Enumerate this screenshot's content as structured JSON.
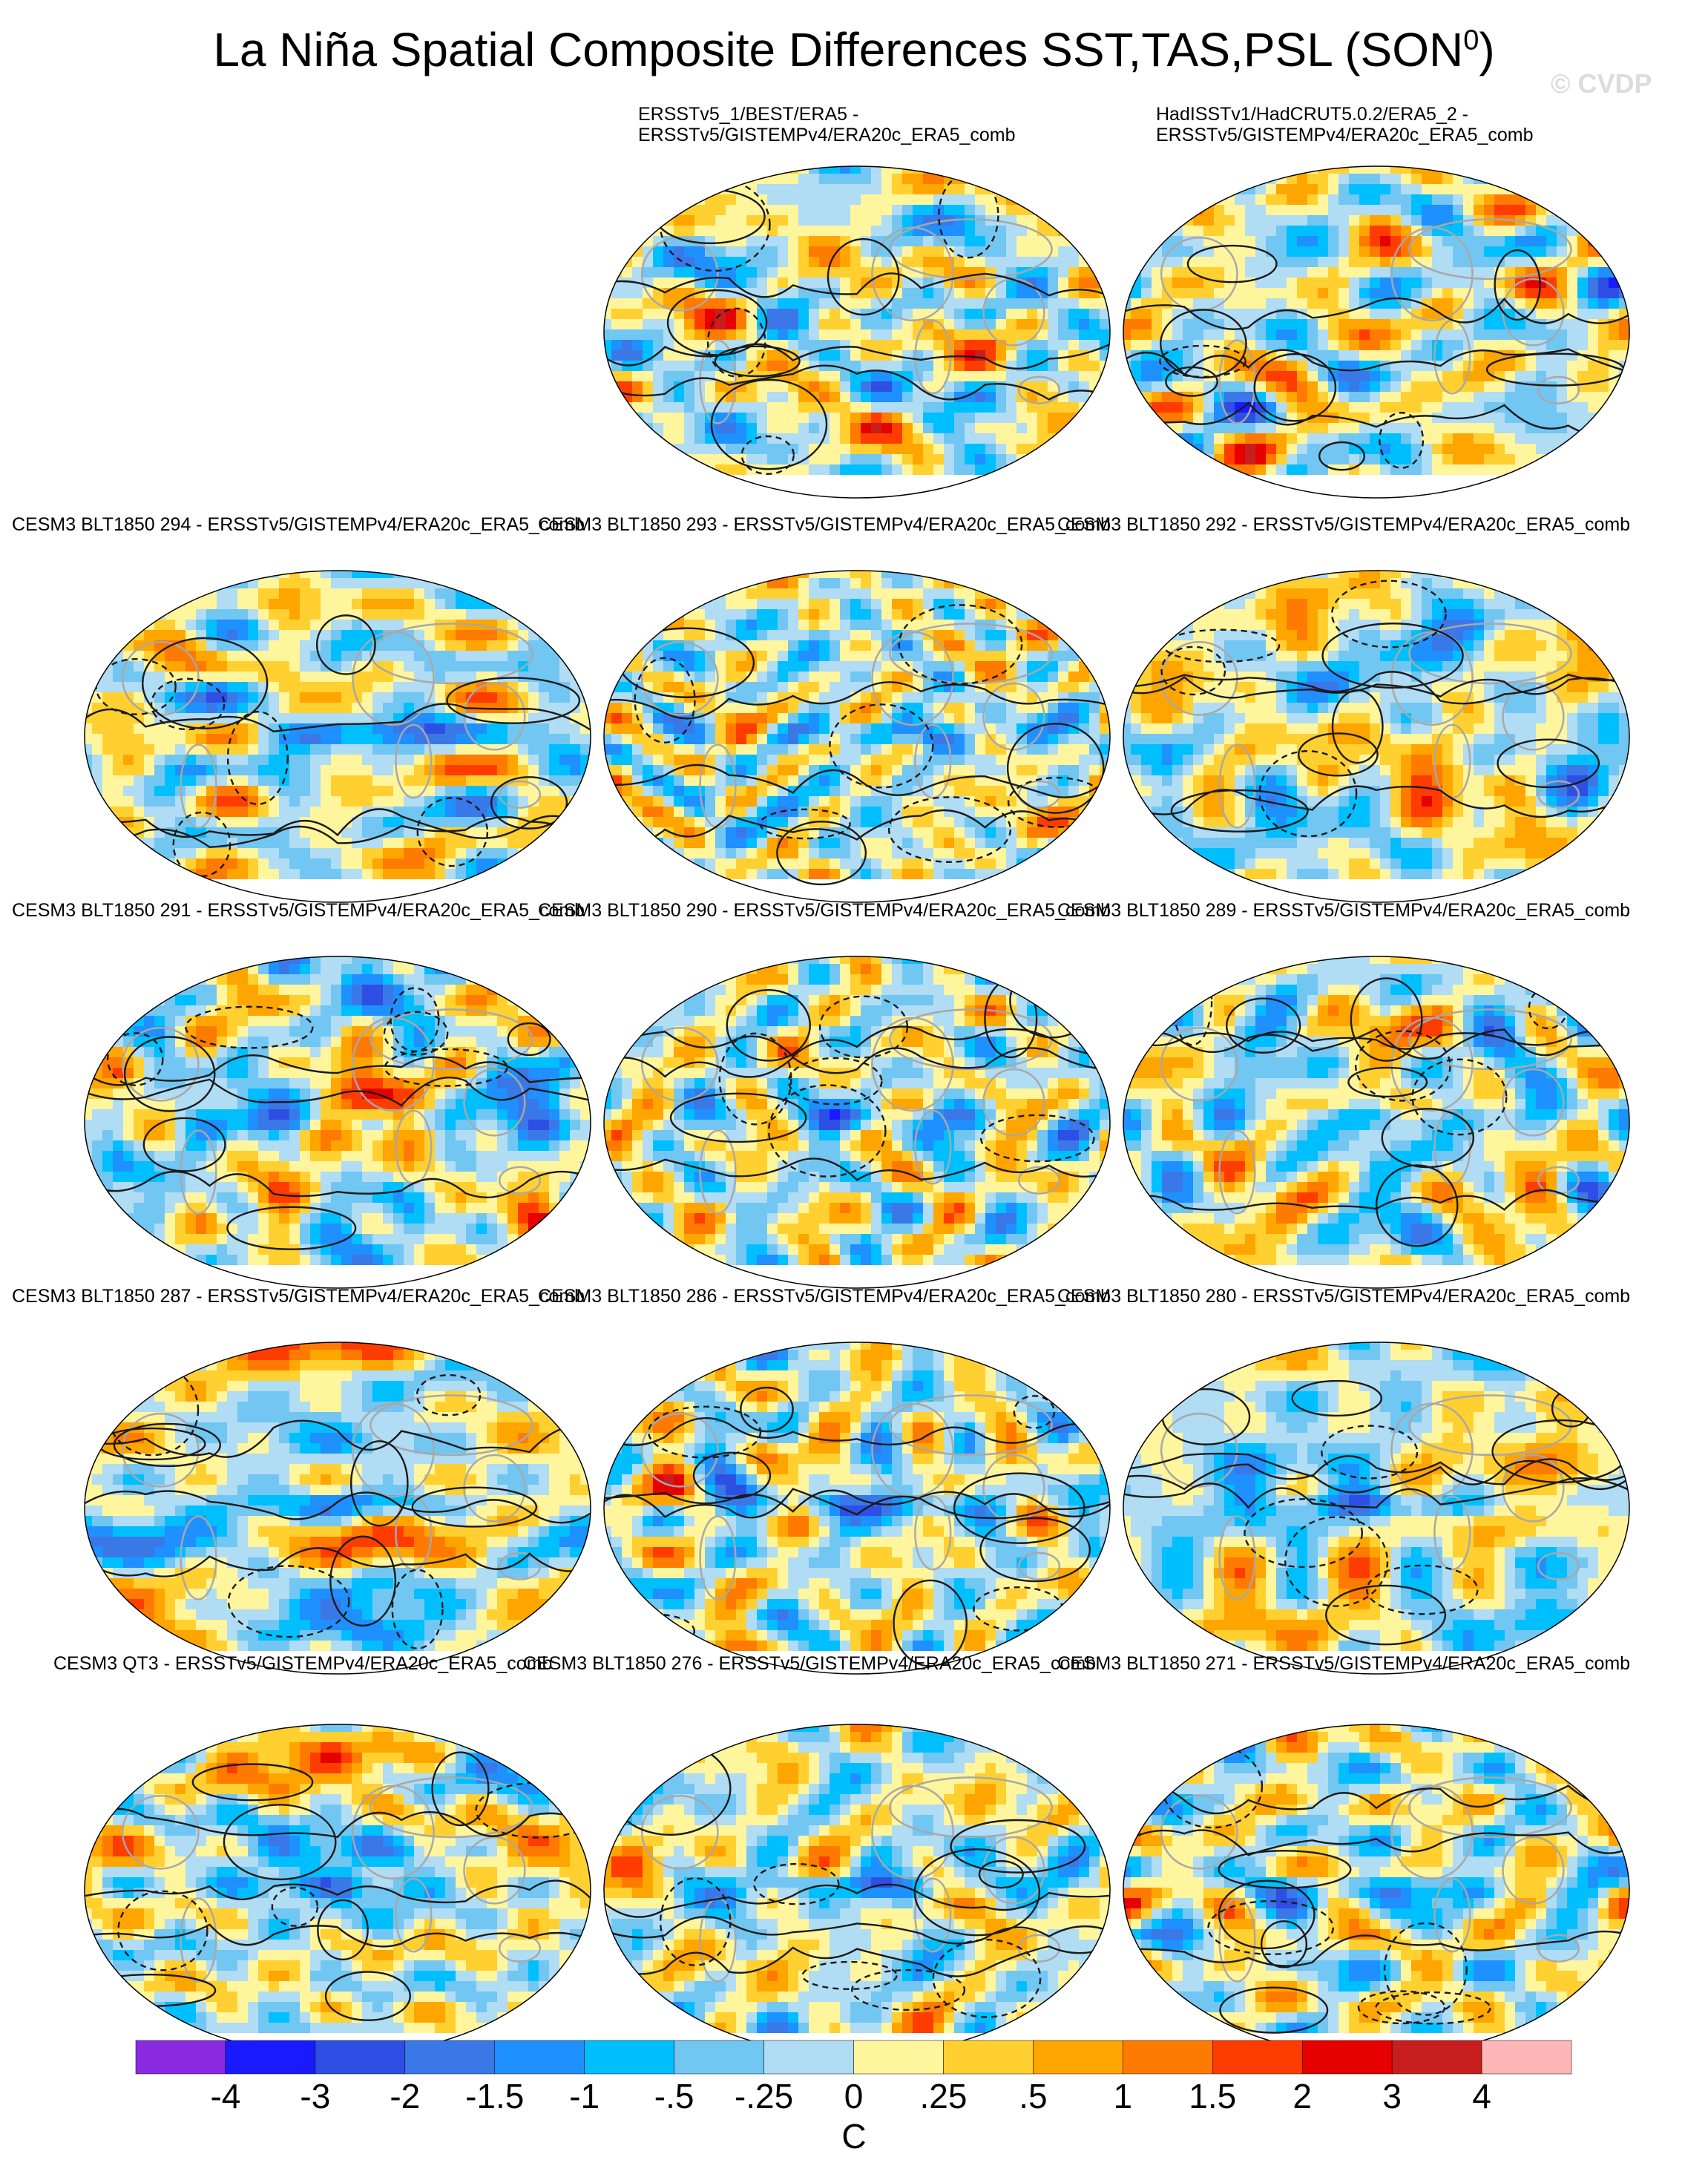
{
  "title": {
    "text": "La Niña Spatial Composite Differences SST,TAS,PSL (SON",
    "superscript": "0",
    "close": ")"
  },
  "watermark": "© CVDP",
  "colors": {
    "levels": [
      "#8a2be2",
      "#1a1aff",
      "#2e4fe3",
      "#3a78e8",
      "#1e90ff",
      "#00bfff",
      "#72c6f2",
      "#b0dcf4",
      "#fff59d",
      "#ffd030",
      "#ffa500",
      "#ff7a00",
      "#ff3c00",
      "#e60000",
      "#c81e1e",
      "#ffb6b6"
    ],
    "land_outline": "#a8a8a8",
    "contour": "#1a1a1a"
  },
  "chart_data": {
    "type": "heatmap",
    "projection": "robinson",
    "variables": [
      "SST",
      "TAS",
      "PSL"
    ],
    "season": "SON0",
    "colorbar": {
      "unit": "C",
      "tick_labels": [
        "-4",
        "-3",
        "-2",
        "-1.5",
        "-1",
        "-.5",
        "-.25",
        "0",
        ".25",
        ".5",
        "1",
        "1.5",
        "2",
        "3",
        "4"
      ]
    },
    "panels": [
      {
        "id": "obs1",
        "title_lines": [
          "ERSSTv5_1/BEST/ERA5 -",
          "ERSSTv5/GISTEMPv4/ERA20c_ERA5_comb"
        ],
        "seed": 11
      },
      {
        "id": "obs2",
        "title_lines": [
          "HadISSTv1/HadCRUT5.0.2/ERA5_2 -",
          "ERSSTv5/GISTEMPv4/ERA20c_ERA5_comb"
        ],
        "seed": 23
      },
      {
        "id": "m294",
        "title_lines": [
          "CESM3 BLT1850 294 - ERSSTv5/GISTEMPv4/ERA20c_ERA5_comb"
        ],
        "seed": 37
      },
      {
        "id": "m293",
        "title_lines": [
          "CESM3 BLT1850 293 - ERSSTv5/GISTEMPv4/ERA20c_ERA5_comb"
        ],
        "seed": 41
      },
      {
        "id": "m292",
        "title_lines": [
          "CESM3 BLT1850 292 - ERSSTv5/GISTEMPv4/ERA20c_ERA5_comb"
        ],
        "seed": 53
      },
      {
        "id": "m291",
        "title_lines": [
          "CESM3 BLT1850 291 - ERSSTv5/GISTEMPv4/ERA20c_ERA5_comb"
        ],
        "seed": 67
      },
      {
        "id": "m290",
        "title_lines": [
          "CESM3 BLT1850 290 - ERSSTv5/GISTEMPv4/ERA20c_ERA5_comb"
        ],
        "seed": 71
      },
      {
        "id": "m289",
        "title_lines": [
          "CESM3 BLT1850 289 - ERSSTv5/GISTEMPv4/ERA20c_ERA5_comb"
        ],
        "seed": 83
      },
      {
        "id": "m287",
        "title_lines": [
          "CESM3 BLT1850 287 - ERSSTv5/GISTEMPv4/ERA20c_ERA5_comb"
        ],
        "seed": 97
      },
      {
        "id": "m286",
        "title_lines": [
          "CESM3 BLT1850 286 - ERSSTv5/GISTEMPv4/ERA20c_ERA5_comb"
        ],
        "seed": 101
      },
      {
        "id": "m280",
        "title_lines": [
          "CESM3 BLT1850 280 - ERSSTv5/GISTEMPv4/ERA20c_ERA5_comb"
        ],
        "seed": 113
      },
      {
        "id": "qt3",
        "title_lines": [
          "CESM3 QT3 - ERSSTv5/GISTEMPv4/ERA20c_ERA5_comb"
        ],
        "seed": 127
      },
      {
        "id": "m276",
        "title_lines": [
          "CESM3 BLT1850 276 - ERSSTv5/GISTEMPv4/ERA20c_ERA5_comb"
        ],
        "seed": 131
      },
      {
        "id": "m271",
        "title_lines": [
          "CESM3 BLT1850 271 - ERSSTv5/GISTEMPv4/ERA20c_ERA5_comb"
        ],
        "seed": 149
      }
    ]
  }
}
